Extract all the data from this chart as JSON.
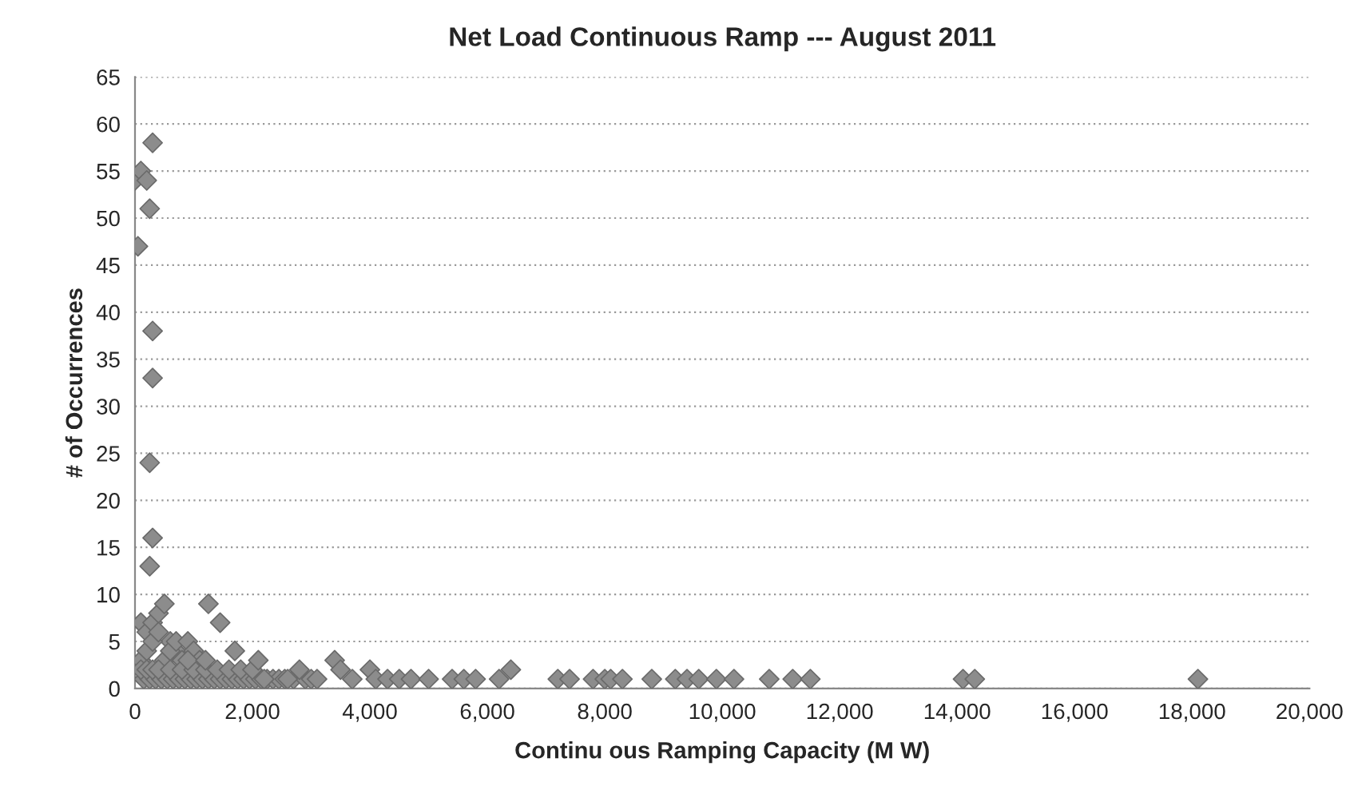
{
  "chart_data": {
    "type": "scatter",
    "title": "Net Load Continuous Ramp --- August 2011",
    "xlabel": "Continu ous Ramping Capacity (M W)",
    "ylabel": "# of Occurrences",
    "x": [
      0,
      100,
      200,
      300,
      250,
      50,
      300,
      300,
      250,
      300,
      250,
      100,
      200,
      300,
      400,
      500,
      600,
      700,
      100,
      200,
      300,
      400,
      500,
      600,
      700,
      800,
      900,
      1000,
      1100,
      150,
      250,
      350,
      450,
      550,
      650,
      750,
      850,
      950,
      1050,
      1150,
      1250,
      1350,
      1450,
      1550,
      1650,
      1750,
      1850,
      1950,
      2050,
      2150,
      2250,
      2350,
      2450,
      2550,
      100,
      200,
      300,
      400,
      600,
      800,
      1000,
      1200,
      1400,
      1600,
      1800,
      2000,
      2200,
      2700,
      2900,
      3000,
      1250,
      1450,
      900,
      1200,
      1700,
      2100,
      2600,
      2800,
      3100,
      3400,
      3500,
      3700,
      4000,
      4100,
      4300,
      4500,
      4700,
      5000,
      5400,
      5600,
      5800,
      6200,
      6400,
      7200,
      7400,
      7800,
      8000,
      8100,
      8300,
      8800,
      9200,
      9400,
      9600,
      9900,
      10200,
      10800,
      11200,
      11500,
      14100,
      14300,
      18100
    ],
    "values": [
      54,
      55,
      54,
      58,
      51,
      47,
      38,
      33,
      24,
      16,
      13,
      7,
      6,
      7,
      8,
      9,
      5,
      4,
      3,
      4,
      5,
      6,
      3,
      4,
      5,
      3,
      5,
      4,
      3,
      1,
      1,
      1,
      1,
      1,
      1,
      1,
      1,
      1,
      1,
      1,
      1,
      1,
      1,
      1,
      1,
      1,
      1,
      1,
      1,
      1,
      1,
      1,
      1,
      1,
      2,
      2,
      2,
      2,
      2,
      2,
      2,
      2,
      2,
      2,
      2,
      2,
      1,
      1,
      1,
      1,
      9,
      7,
      3,
      3,
      4,
      3,
      1,
      2,
      1,
      3,
      2,
      1,
      2,
      1,
      1,
      1,
      1,
      1,
      1,
      1,
      1,
      1,
      2,
      1,
      1,
      1,
      1,
      1,
      1,
      1,
      1,
      1,
      1,
      1,
      1,
      1,
      1,
      1,
      1,
      1,
      1
    ],
    "color": "#8c8c8c",
    "marker": "diamond",
    "grid": "y",
    "xlim": [
      0,
      20000
    ],
    "xticks": [
      {
        "value": 0,
        "label": "0"
      },
      {
        "value": 2000,
        "label": "2,000"
      },
      {
        "value": 4000,
        "label": "4,000"
      },
      {
        "value": 6000,
        "label": "6,000"
      },
      {
        "value": 8000,
        "label": "8,000"
      },
      {
        "value": 10000,
        "label": "10,000"
      },
      {
        "value": 12000,
        "label": "12,000"
      },
      {
        "value": 14000,
        "label": "14,000"
      },
      {
        "value": 16000,
        "label": "16,000"
      },
      {
        "value": 18000,
        "label": "18,000"
      },
      {
        "value": 20000,
        "label": "20,000"
      }
    ],
    "ylim": [
      0,
      65
    ],
    "yticks": [
      0,
      5,
      10,
      15,
      20,
      25,
      30,
      35,
      40,
      45,
      50,
      55,
      60,
      65
    ]
  }
}
